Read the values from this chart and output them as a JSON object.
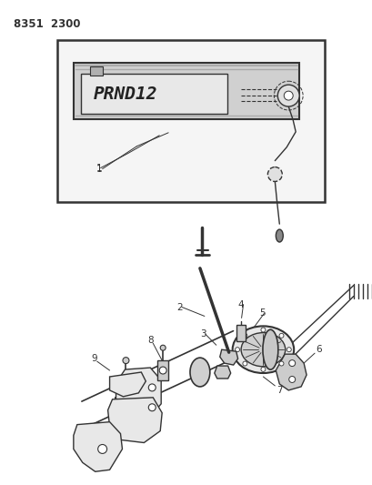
{
  "title_code": "8351  2300",
  "background_color": "#ffffff",
  "line_color": "#333333",
  "fill_light": "#e8e8e8",
  "fill_mid": "#cccccc",
  "fill_dark": "#aaaaaa",
  "figsize": [
    4.1,
    5.33
  ],
  "dpi": 100
}
